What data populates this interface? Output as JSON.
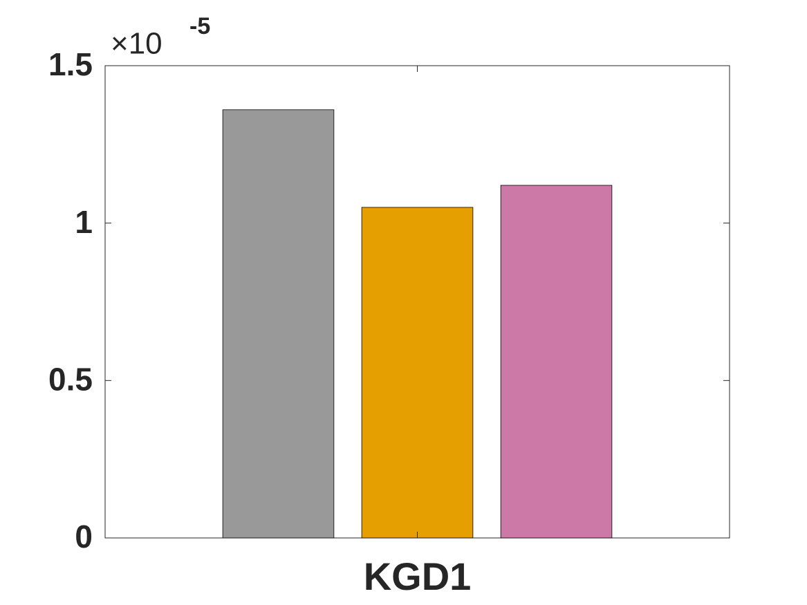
{
  "chart_data": {
    "type": "bar",
    "categories": [
      "KGD1"
    ],
    "series": [
      {
        "color": "#999999",
        "values": [
          1.36
        ]
      },
      {
        "color": "#e69f00",
        "values": [
          1.05
        ]
      },
      {
        "color": "#cc79a7",
        "values": [
          1.12
        ]
      }
    ],
    "ylim": [
      0,
      1.5
    ],
    "yticks": [
      0,
      0.5,
      1,
      1.5
    ],
    "axis_multiplier": "×10",
    "axis_exponent": "-5",
    "grid": false
  }
}
